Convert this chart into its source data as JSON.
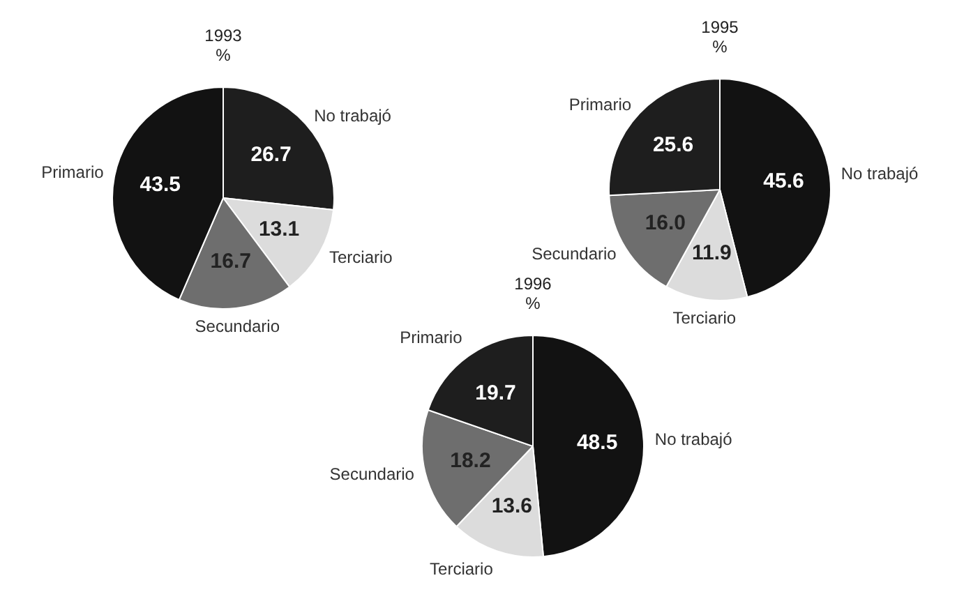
{
  "chart_data": [
    {
      "type": "pie",
      "title": "1993",
      "subtitle": "%",
      "categories": [
        "No trabajó",
        "Terciario",
        "Secundario",
        "Primario"
      ],
      "values": [
        26.7,
        13.1,
        16.7,
        43.5
      ],
      "value_labels": [
        "26.7",
        "13.1",
        "16.7",
        "43.5"
      ],
      "colors": [
        "#1e1e1e",
        "#dcdcdc",
        "#6e6e6e",
        "#121212"
      ]
    },
    {
      "type": "pie",
      "title": "1995",
      "subtitle": "%",
      "categories": [
        "No trabajó",
        "Terciario",
        "Secundario",
        "Primario"
      ],
      "values": [
        45.6,
        11.9,
        16.0,
        25.6
      ],
      "value_labels": [
        "45.6",
        "11.9",
        "16.0",
        "25.6"
      ],
      "colors": [
        "#121212",
        "#dcdcdc",
        "#6e6e6e",
        "#1e1e1e"
      ]
    },
    {
      "type": "pie",
      "title": "1996",
      "subtitle": "%",
      "categories": [
        "No trabajó",
        "Terciario",
        "Secundario",
        "Primario"
      ],
      "values": [
        48.5,
        13.6,
        18.2,
        19.7
      ],
      "value_labels": [
        "48.5",
        "13.6",
        "18.2",
        "19.7"
      ],
      "colors": [
        "#121212",
        "#dcdcdc",
        "#6e6e6e",
        "#1e1e1e"
      ]
    }
  ]
}
